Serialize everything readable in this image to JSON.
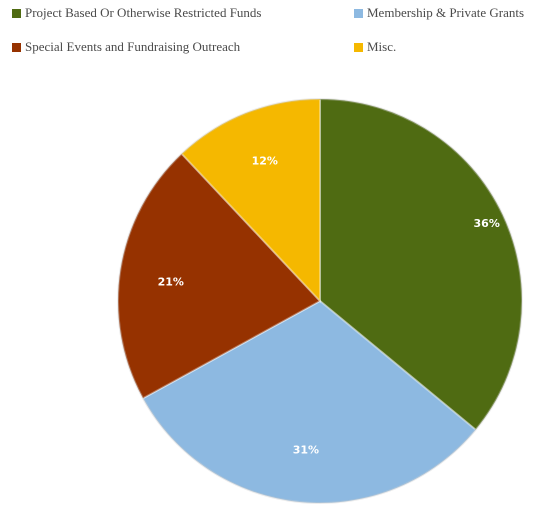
{
  "chart_data": {
    "type": "pie",
    "title": "",
    "legend_placement": "top",
    "slices": [
      {
        "label": "Project Based Or Otherwise Restricted Funds",
        "value": 36,
        "value_label": "36%",
        "color": "#4F6B12"
      },
      {
        "label": "Membership & Private Grants",
        "value": 31,
        "value_label": "31%",
        "color": "#8DB9E1"
      },
      {
        "label": "Special Events and Fundraising Outreach",
        "value": 21,
        "value_label": "21%",
        "color": "#963200"
      },
      {
        "label": "Misc.",
        "value": 12,
        "value_label": "12%",
        "color": "#F5B800"
      }
    ]
  }
}
